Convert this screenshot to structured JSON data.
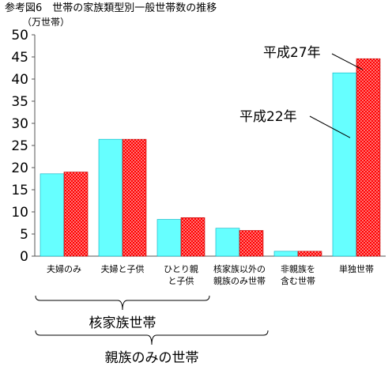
{
  "chart_data": {
    "type": "bar",
    "title": "参考図6　世帯の家族類型別一般世帯数の推移",
    "unit_label": "（万世帯）",
    "ylim": [
      0,
      50
    ],
    "y_ticks": [
      0,
      5,
      10,
      15,
      20,
      25,
      30,
      35,
      40,
      45,
      50
    ],
    "grid": false,
    "categories": [
      [
        "夫婦のみ"
      ],
      [
        "夫婦と子供"
      ],
      [
        "ひとり親",
        "と子供"
      ],
      [
        "核家族以外の",
        "親族のみ世帯"
      ],
      [
        "非親族を",
        "含む世帯"
      ],
      [
        "単独世帯"
      ]
    ],
    "series": [
      {
        "name": "平成22年",
        "color": "#66ffff",
        "values": [
          18.6,
          26.4,
          8.3,
          6.3,
          1.1,
          41.4
        ]
      },
      {
        "name": "平成27年",
        "color": "#ff0000",
        "pattern": "dots",
        "values": [
          19.0,
          26.4,
          8.7,
          5.8,
          1.1,
          44.6
        ]
      }
    ],
    "groupings": [
      {
        "label": "核家族世帯"
      },
      {
        "label": "親族のみの世帯"
      }
    ]
  }
}
